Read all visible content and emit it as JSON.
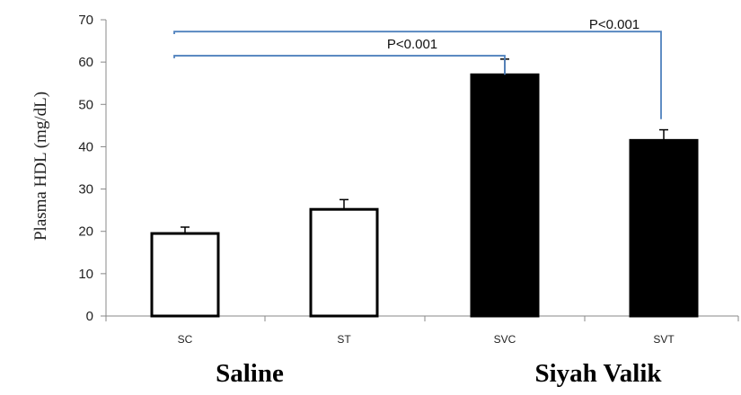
{
  "chart_data": {
    "type": "bar",
    "ylabel": "Plasma HDL (mg/dL)",
    "xlabel": "",
    "ylim": [
      0,
      70
    ],
    "yticks": [
      "0",
      "10",
      "20",
      "30",
      "40",
      "50",
      "60",
      "70"
    ],
    "grid": false,
    "categories": [
      "SC",
      "ST",
      "SVC",
      "SVT"
    ],
    "values": [
      19.5,
      25.2,
      57.0,
      41.5
    ],
    "errors": [
      1.5,
      2.3,
      3.7,
      2.5
    ],
    "bar_fill": [
      "#ffffff",
      "#ffffff",
      "#000000",
      "#000000"
    ],
    "groups": [
      {
        "label": "Saline",
        "categories": [
          "SC",
          "ST"
        ]
      },
      {
        "label": "Siyah Valik",
        "categories": [
          "SVC",
          "SVT"
        ]
      }
    ],
    "comparisons": [
      {
        "from": "SC",
        "to": "SVC",
        "label": "P<0.001"
      },
      {
        "from": "SC",
        "to": "SVT",
        "label": "P<0.001"
      }
    ],
    "bracket_color": "#4f81bd",
    "axis_color": "#888888"
  }
}
